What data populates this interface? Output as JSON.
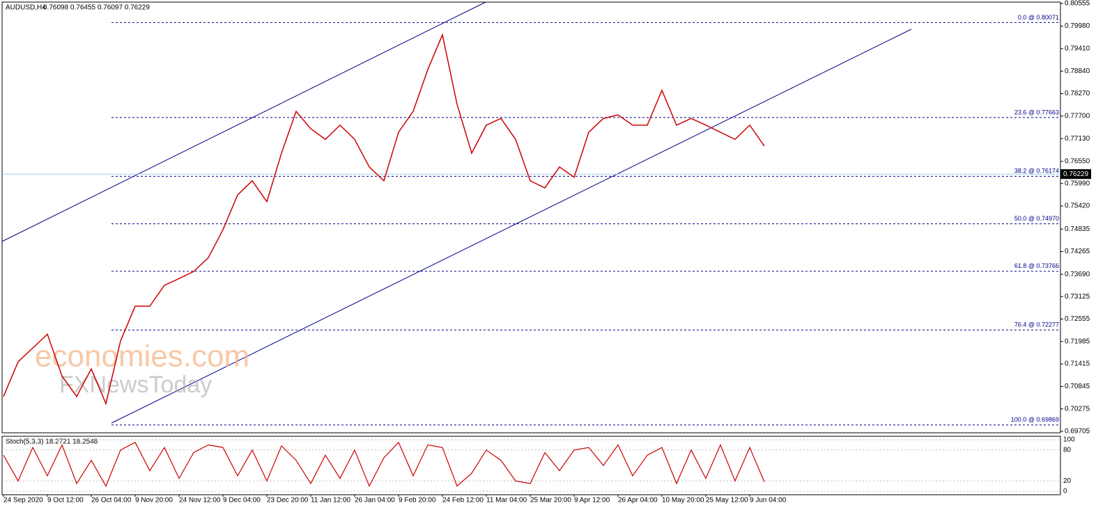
{
  "chart_data": {
    "type": "line",
    "title": "AUDUSD,H4",
    "subtitle": "0.76098 0.76455 0.76097 0.76229",
    "categories": [
      "24 Sep 2020",
      null,
      null,
      "9 Oct 12:00",
      null,
      null,
      "26 Oct 04:00",
      null,
      null,
      "9 Nov 20:00",
      null,
      null,
      "24 Nov 12:00",
      null,
      null,
      "9 Dec 04:00",
      null,
      null,
      "23 Dec 20:00",
      null,
      null,
      "11 Jan 12:00",
      null,
      null,
      "26 Jan 04:00",
      null,
      null,
      "9 Feb 20:00",
      null,
      null,
      "24 Feb 12:00",
      null,
      null,
      "11 Mar 04:00",
      null,
      null,
      "25 Mar 20:00",
      null,
      null,
      "9 Apr 12:00",
      null,
      null,
      "26 Apr 04:00",
      null,
      null,
      "10 May 20:00",
      null,
      null,
      "25 May 12:00",
      null,
      null,
      "9 Jun 04:00",
      null
    ],
    "values": [
      0.7059,
      0.7147,
      0.7182,
      0.7217,
      0.7111,
      0.7059,
      0.7129,
      0.7041,
      0.72,
      0.7288,
      0.7288,
      0.7341,
      0.7358,
      0.7376,
      0.7411,
      0.7482,
      0.757,
      0.7606,
      0.7553,
      0.7676,
      0.7782,
      0.7738,
      0.7711,
      0.7747,
      0.7711,
      0.7641,
      0.7606,
      0.7729,
      0.7782,
      0.7888,
      0.7976,
      0.78,
      0.7676,
      0.7747,
      0.7764,
      0.7711,
      0.7606,
      0.7588,
      0.7641,
      0.7615,
      0.7729,
      0.7764,
      0.7773,
      0.7747,
      0.7747,
      0.7835,
      0.7747,
      0.7764,
      0.7747,
      0.7729,
      0.7711,
      0.7747,
      0.7694
    ],
    "color": "#cc0000",
    "ylim": [
      0.69705,
      0.80555
    ],
    "yticks": [
      0.69705,
      {
        "value": 0.70275,
        "label": "0.70275"
      },
      0.70845,
      0.71415,
      0.71985,
      0.72555,
      0.73125,
      {
        "value": 0.7369,
        "label": "0.73690"
      },
      0.74265,
      0.74835,
      {
        "value": 0.7542,
        "label": "0.75420"
      },
      {
        "value": 0.7599,
        "label": "0.75990"
      },
      {
        "value": 0.7655,
        "label": "0.76550"
      },
      {
        "value": 0.7713,
        "label": "0.77130"
      },
      {
        "value": 0.777,
        "label": "0.77700"
      },
      {
        "value": 0.7827,
        "label": "0.78270"
      },
      {
        "value": 0.7884,
        "label": "0.78840"
      },
      {
        "value": 0.7941,
        "label": "0.79410"
      },
      {
        "value": 0.7998,
        "label": "0.79980"
      },
      0.80555
    ],
    "last_price": 0.76229,
    "fib_levels": [
      {
        "value": 0.80071,
        "label": "0.0 @ 0.80071"
      },
      {
        "value": 0.77663,
        "label": "23.6 @ 0.77663"
      },
      {
        "value": 0.76174,
        "label": "38.2 @ 0.76174"
      },
      {
        "value": 0.7497,
        "label": "50.0 @ 0.74970"
      },
      {
        "value": 0.73766,
        "label": "61.8 @ 0.73766"
      },
      {
        "value": 0.72277,
        "label": "76.4 @ 0.72277"
      },
      {
        "value": 0.69869,
        "label": "100.0 @ 0.69869"
      }
    ],
    "watermark": [
      "economies.com",
      "FXNewsToday"
    ],
    "stoch": {
      "title": "Stoch(5,3,3) 18.2721 18.2548",
      "ylim": [
        0,
        100
      ],
      "yticks": [
        0,
        20,
        80,
        100
      ],
      "values": [
        70,
        20,
        85,
        30,
        90,
        15,
        60,
        10,
        80,
        95,
        40,
        85,
        25,
        75,
        90,
        85,
        30,
        80,
        20,
        88,
        60,
        15,
        70,
        25,
        80,
        10,
        65,
        95,
        30,
        90,
        85,
        10,
        35,
        80,
        60,
        20,
        15,
        75,
        40,
        80,
        85,
        50,
        90,
        30,
        70,
        85,
        15,
        80,
        25,
        90,
        20,
        85,
        18.2721
      ],
      "color": "#cc0000"
    }
  }
}
